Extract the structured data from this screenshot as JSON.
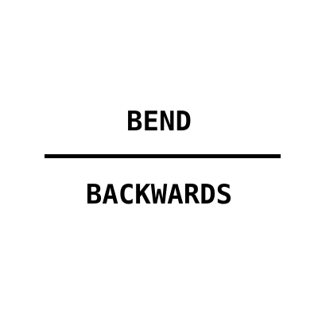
{
  "puzzle": {
    "top_word": "BEND",
    "bottom_word": "BACKWARDS"
  },
  "colors": {
    "background": "#ffffff",
    "text": "#000000",
    "divider": "#000000"
  }
}
